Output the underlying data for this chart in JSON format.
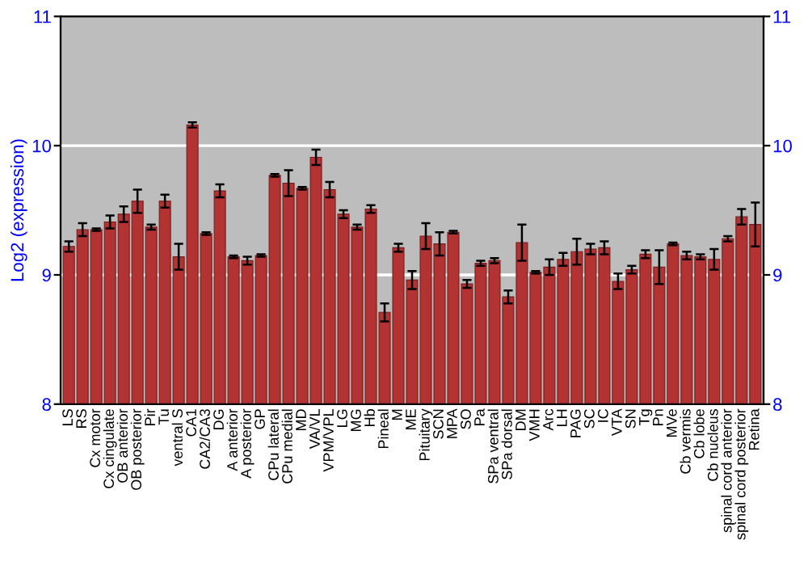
{
  "chart_data": {
    "type": "bar",
    "ylabel": "Log2 (expression)",
    "categories": [
      "LS",
      "RS",
      "Cx motor",
      "Cx cingulate",
      "OB anterior",
      "OB posterior",
      "Pir",
      "Tu",
      "ventral S",
      "CA1",
      "CA2/CA3",
      "DG",
      "A anterior",
      "A posterior",
      "GP",
      "CPu lateral",
      "CPu medial",
      "MD",
      "VA/VL",
      "VPM/VPL",
      "LG",
      "MG",
      "Hb",
      "Pineal",
      "M",
      "ME",
      "Pituitary",
      "SCN",
      "MPA",
      "SO",
      "Pa",
      "SPa ventral",
      "SPa dorsal",
      "DM",
      "VMH",
      "Arc",
      "LH",
      "PAG",
      "SC",
      "IC",
      "VTA",
      "SN",
      "Tg",
      "Pn",
      "MVe",
      "Cb vermis",
      "Cb lobe",
      "Cb nucleus",
      "spinal cord anterior",
      "spinal cord posterior",
      "Retina"
    ],
    "values": [
      9.22,
      9.35,
      9.35,
      9.41,
      9.47,
      9.57,
      9.37,
      9.57,
      9.14,
      10.16,
      9.32,
      9.65,
      9.14,
      9.11,
      9.15,
      9.77,
      9.71,
      9.67,
      9.91,
      9.66,
      9.47,
      9.37,
      9.51,
      8.71,
      9.21,
      8.96,
      9.3,
      9.24,
      9.33,
      8.93,
      9.09,
      9.11,
      8.83,
      9.25,
      9.02,
      9.06,
      9.12,
      9.18,
      9.2,
      9.21,
      8.95,
      9.04,
      9.16,
      9.06,
      9.24,
      9.15,
      9.14,
      9.12,
      9.28,
      9.45,
      9.39
    ],
    "errors": [
      0.04,
      0.05,
      0.01,
      0.05,
      0.06,
      0.09,
      0.02,
      0.05,
      0.1,
      0.02,
      0.01,
      0.05,
      0.01,
      0.03,
      0.01,
      0.01,
      0.1,
      0.01,
      0.06,
      0.06,
      0.03,
      0.02,
      0.03,
      0.07,
      0.03,
      0.07,
      0.1,
      0.09,
      0.01,
      0.03,
      0.02,
      0.02,
      0.05,
      0.14,
      0.01,
      0.06,
      0.05,
      0.1,
      0.04,
      0.05,
      0.06,
      0.03,
      0.03,
      0.13,
      0.01,
      0.03,
      0.02,
      0.08,
      0.02,
      0.06,
      0.17
    ],
    "color": "#b33232",
    "ylim": [
      8,
      11
    ],
    "yticks": [
      8,
      9,
      10,
      11
    ],
    "y2lim": [
      8,
      11
    ],
    "y2ticks": [
      8,
      9,
      10,
      11
    ],
    "grid": "y"
  }
}
